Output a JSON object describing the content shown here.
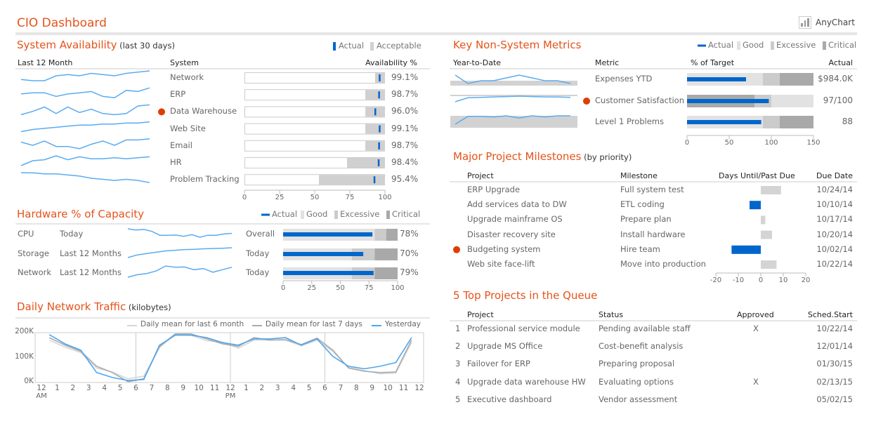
{
  "header": {
    "title": "CIO Dashboard",
    "logo": "AnyChart"
  },
  "colors": {
    "accent": "#e5531b",
    "actual": "#0066cc",
    "spark": "#5aabf0",
    "good": "#e2e2e2",
    "excessive": "#cbcbcb",
    "critical": "#a9a9a9",
    "alert": "#e03c00"
  },
  "sysavail": {
    "title": "System Availability",
    "subtitle": "(last 30 days)",
    "legend": [
      "Actual",
      "Acceptable"
    ],
    "headers": {
      "trend": "Last 12 Month",
      "system": "System",
      "avail": "Availability %"
    },
    "axis": [
      "0",
      "25",
      "50",
      "75",
      "100"
    ],
    "rows": [
      {
        "name": "Network",
        "value": 99.1,
        "label": "99.1%",
        "acceptable": 93,
        "alert": false,
        "spark": [
          3,
          2,
          2,
          6,
          7,
          6,
          8,
          7,
          6,
          8,
          9,
          10
        ]
      },
      {
        "name": "ERP",
        "value": 98.7,
        "label": "98.7%",
        "acceptable": 86,
        "alert": false,
        "spark": [
          6,
          7,
          7,
          4,
          6,
          7,
          8,
          4,
          3,
          9,
          8,
          11
        ]
      },
      {
        "name": "Data Warehouse",
        "value": 96.0,
        "label": "96.0%",
        "acceptable": 86,
        "alert": true,
        "spark": [
          2,
          5,
          9,
          3,
          9,
          4,
          7,
          3,
          2,
          3,
          10,
          11
        ]
      },
      {
        "name": "Web Site",
        "value": 99.1,
        "label": "99.1%",
        "acceptable": 86,
        "alert": false,
        "spark": [
          1,
          3,
          4,
          5,
          6,
          7,
          7,
          8,
          8,
          9,
          9,
          10
        ]
      },
      {
        "name": "Email",
        "value": 98.7,
        "label": "98.7%",
        "acceptable": 86,
        "alert": false,
        "spark": [
          8,
          5,
          9,
          4,
          4,
          2,
          6,
          9,
          5,
          10,
          10,
          11
        ]
      },
      {
        "name": "HR",
        "value": 98.4,
        "label": "98.4%",
        "acceptable": 73,
        "alert": false,
        "spark": [
          1,
          6,
          7,
          11,
          7,
          10,
          8,
          8,
          9,
          8,
          9,
          10
        ]
      },
      {
        "name": "Problem Tracking",
        "value": 95.4,
        "label": "95.4%",
        "acceptable": 53,
        "alert": false,
        "spark": [
          11,
          11,
          10,
          10,
          9,
          8,
          6,
          5,
          4,
          5,
          4,
          2
        ]
      }
    ]
  },
  "hardware": {
    "title": "Hardware % of Capacity",
    "legend": [
      "Actual",
      "Good",
      "Excessive",
      "Critical"
    ],
    "axis": [
      "0",
      "25",
      "50",
      "75",
      "100"
    ],
    "rows": [
      {
        "name": "CPU",
        "period": "Today",
        "scope": "Overall",
        "value": 78,
        "label": "78%",
        "ranges": [
          80,
          90,
          100
        ],
        "spark": [
          11,
          10,
          10.5,
          9,
          6,
          6,
          6.2,
          5.2,
          6.5,
          4.5,
          6,
          6,
          7,
          7.5
        ]
      },
      {
        "name": "Storage",
        "period": "Last 12 Months",
        "scope": "Today",
        "value": 70,
        "label": "70%",
        "ranges": [
          60,
          80,
          100
        ],
        "spark": [
          1,
          3,
          4,
          5,
          6,
          6.5,
          7,
          7.2,
          7.6,
          7.8,
          8,
          8.4
        ]
      },
      {
        "name": "Network",
        "period": "Last 12 Months",
        "scope": "Today",
        "value": 79,
        "label": "79%",
        "ranges": [
          60,
          80,
          100
        ],
        "spark": [
          1,
          3,
          4,
          6,
          10,
          9,
          9.2,
          7,
          8,
          5,
          7,
          9
        ]
      }
    ]
  },
  "traffic": {
    "title": "Daily Network Traffic",
    "subtitle": "(kilobytes)",
    "chart_data": {
      "type": "line",
      "title": "Daily Network Traffic (kilobytes)",
      "ylim": [
        0,
        200
      ],
      "yticks": [
        "0K",
        "100K",
        "200K"
      ],
      "xticks": [
        "12",
        "1",
        "2",
        "3",
        "4",
        "5",
        "6",
        "7",
        "8",
        "9",
        "10",
        "11",
        "12",
        "1",
        "2",
        "3",
        "4",
        "5",
        "6",
        "7",
        "8",
        "9",
        "10",
        "11",
        "12"
      ],
      "xsub": {
        "0": "AM",
        "12": "PM"
      },
      "x": [
        0.5,
        1.5,
        2.5,
        3.5,
        4.5,
        5.5,
        6.5,
        7.5,
        8.5,
        9.5,
        10.5,
        11.5,
        12.5,
        13.5,
        14.5,
        15.5,
        16.5,
        17.5,
        18.5,
        19.5,
        20.5,
        21.5,
        22.5,
        23.5
      ],
      "legend": "top-right",
      "series": [
        {
          "name": "Daily mean for last 6 month",
          "color": "#d6d6d6",
          "values": [
            170,
            142,
            120,
            58,
            42,
            15,
            25,
            140,
            193,
            190,
            168,
            162,
            138,
            170,
            170,
            170,
            147,
            170,
            125,
            60,
            48,
            35,
            38,
            160
          ]
        },
        {
          "name": "Daily mean for last 7 days",
          "color": "#aaaaaa",
          "values": [
            180,
            150,
            125,
            65,
            40,
            3,
            15,
            145,
            195,
            195,
            175,
            155,
            145,
            180,
            170,
            172,
            152,
            178,
            130,
            58,
            45,
            40,
            42,
            170
          ]
        },
        {
          "name": "Yesterday",
          "color": "#4da6f0",
          "values": [
            192,
            155,
            130,
            40,
            20,
            8,
            12,
            150,
            190,
            190,
            180,
            160,
            150,
            175,
            175,
            180,
            150,
            175,
            105,
            65,
            55,
            65,
            80,
            180
          ]
        }
      ]
    }
  },
  "metrics": {
    "title": "Key Non-System Metrics",
    "legend": [
      "Actual",
      "Good",
      "Excessive",
      "Critical"
    ],
    "headers": {
      "trend": "Year-to-Date",
      "metric": "Metric",
      "pct": "% of Target",
      "actual": "Actual"
    },
    "axis": [
      "0",
      "50",
      "100",
      "150"
    ],
    "rows": [
      {
        "name": "Expenses YTD",
        "value": 70,
        "label": "$984.0K",
        "alert": false,
        "bands": [
          [
            0,
            90,
            "#e2e2e2"
          ],
          [
            90,
            110,
            "#cbcbcb"
          ],
          [
            110,
            150,
            "#a9a9a9"
          ]
        ],
        "spark": [
          9,
          3,
          5,
          5,
          7,
          9,
          7,
          5,
          5,
          3
        ]
      },
      {
        "name": "Customer Satisfaction",
        "value": 97,
        "label": "97/100",
        "alert": true,
        "bands": [
          [
            0,
            80,
            "#a9a9a9"
          ],
          [
            80,
            100,
            "#cbcbcb"
          ],
          [
            100,
            150,
            "#e2e2e2"
          ]
        ],
        "spark": [
          2,
          7,
          7.5,
          8,
          8.5,
          9,
          8.5,
          8,
          8,
          7.5
        ]
      },
      {
        "name": "Level 1 Problems",
        "value": 88,
        "label": "88",
        "alert": false,
        "bands": [
          [
            0,
            90,
            "#e2e2e2"
          ],
          [
            90,
            110,
            "#cbcbcb"
          ],
          [
            110,
            150,
            "#a9a9a9"
          ]
        ],
        "spark": [
          2,
          9,
          9,
          8.5,
          9.5,
          7.5,
          9.5,
          8.5,
          9.5,
          9.5
        ]
      }
    ]
  },
  "milestones": {
    "title": "Major Project Milestones",
    "subtitle": "(by priority)",
    "headers": {
      "project": "Project",
      "milestone": "Milestone",
      "days": "Days Until/Past Due",
      "due": "Due Date"
    },
    "axis": [
      "-20",
      "-10",
      "0",
      "10",
      "20"
    ],
    "rows": [
      {
        "project": "ERP Upgrade",
        "milestone": "Full system test",
        "days": 9,
        "due": "10/24/14",
        "alert": false
      },
      {
        "project": "Add services data to DW",
        "milestone": "ETL coding",
        "days": -5,
        "due": "10/10/14",
        "alert": false
      },
      {
        "project": "Upgrade mainframe OS",
        "milestone": "Prepare plan",
        "days": 2,
        "due": "10/17/14",
        "alert": false
      },
      {
        "project": "Disaster recovery site",
        "milestone": "Install hardware",
        "days": 5,
        "due": "10/20/14",
        "alert": false
      },
      {
        "project": "Budgeting system",
        "milestone": "Hire team",
        "days": -13,
        "due": "10/02/14",
        "alert": true
      },
      {
        "project": "Web site face-lift",
        "milestone": "Move into production",
        "days": 7,
        "due": "10/22/14",
        "alert": false
      }
    ]
  },
  "queue": {
    "title": "5 Top Projects in the Queue",
    "headers": {
      "project": "Project",
      "status": "Status",
      "approved": "Approved",
      "start": "Sched.Start"
    },
    "rows": [
      {
        "num": "1",
        "project": "Professional service module",
        "status": "Pending available staff",
        "approved": "X",
        "start": "10/22/14"
      },
      {
        "num": "2",
        "project": "Upgrade MS Office",
        "status": "Cost-benefit analysis",
        "approved": "",
        "start": "12/01/14"
      },
      {
        "num": "3",
        "project": "Failover for ERP",
        "status": "Preparing proposal",
        "approved": "",
        "start": "01/30/15"
      },
      {
        "num": "4",
        "project": "Upgrade data warehouse HW",
        "status": "Evaluating options",
        "approved": "X",
        "start": "02/13/15"
      },
      {
        "num": "5",
        "project": "Executive dashboard",
        "status": "Vendor assessment",
        "approved": "",
        "start": "05/02/15"
      }
    ]
  }
}
